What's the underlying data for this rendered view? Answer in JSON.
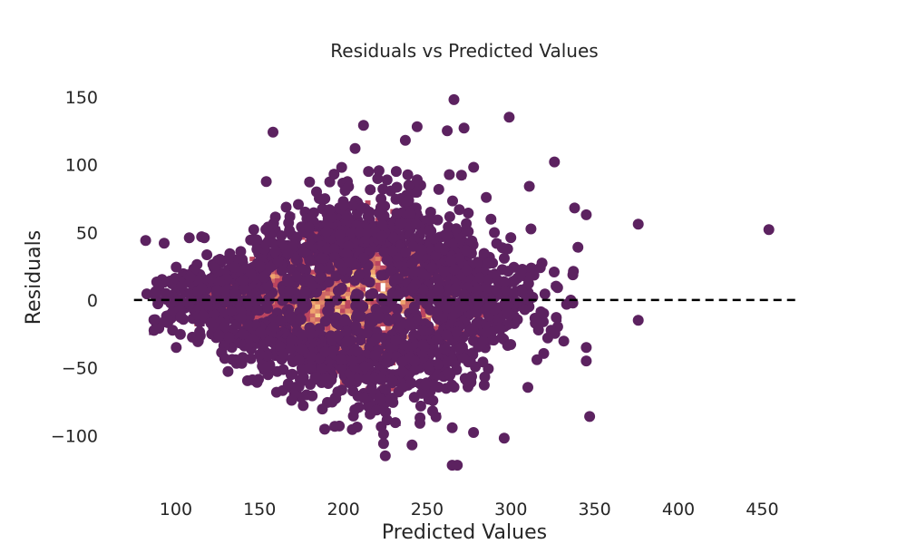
{
  "chart_data": {
    "type": "scatter",
    "title": "Residuals vs Predicted Values",
    "xlabel": "Predicted Values",
    "ylabel": "Residuals",
    "xlim": [
      60,
      485
    ],
    "ylim": [
      -140,
      160
    ],
    "xticks": [
      100,
      150,
      200,
      250,
      300,
      350,
      400,
      450
    ],
    "yticks": [
      150,
      100,
      50,
      0,
      -50,
      -100
    ],
    "ytick_labels": [
      "150",
      "100",
      "50",
      "0",
      "−50",
      "−100"
    ],
    "grid": false,
    "reference_line": {
      "y": 0,
      "style": "dashed",
      "color": "#000000",
      "x_range": [
        75,
        472
      ]
    },
    "colors": {
      "point": "#5c2260",
      "density_low": "#5c2260",
      "density_mid": "#b8405e",
      "density_high": "#f0a56e",
      "density_peak": "#f9d78f"
    },
    "marker_size_px": 6,
    "notable_points": [
      [
        266,
        148
      ],
      [
        299,
        135
      ],
      [
        158,
        124
      ],
      [
        212,
        129
      ],
      [
        244,
        128
      ],
      [
        262,
        125
      ],
      [
        272,
        127
      ],
      [
        326,
        102
      ],
      [
        207,
        112
      ],
      [
        237,
        118
      ],
      [
        215,
        95
      ],
      [
        199,
        98
      ],
      [
        376,
        56
      ],
      [
        454,
        52
      ],
      [
        82,
        44
      ],
      [
        93,
        42
      ],
      [
        108,
        46
      ],
      [
        117,
        46
      ],
      [
        224,
        -99
      ],
      [
        224,
        -106
      ],
      [
        225,
        -115
      ],
      [
        241,
        -107
      ],
      [
        265,
        -122
      ],
      [
        268,
        -122
      ],
      [
        296,
        -102
      ],
      [
        347,
        -86
      ],
      [
        376,
        -15
      ],
      [
        345,
        -35
      ],
      [
        345,
        -45
      ],
      [
        322,
        -28
      ],
      [
        340,
        39
      ],
      [
        345,
        63
      ],
      [
        338,
        68
      ],
      [
        311,
        84
      ]
    ],
    "cloud": {
      "x_mean": 205,
      "x_sd": 44,
      "residual_sd": 30,
      "n_points": 4000,
      "density_peak": [
        190,
        -5
      ]
    }
  }
}
